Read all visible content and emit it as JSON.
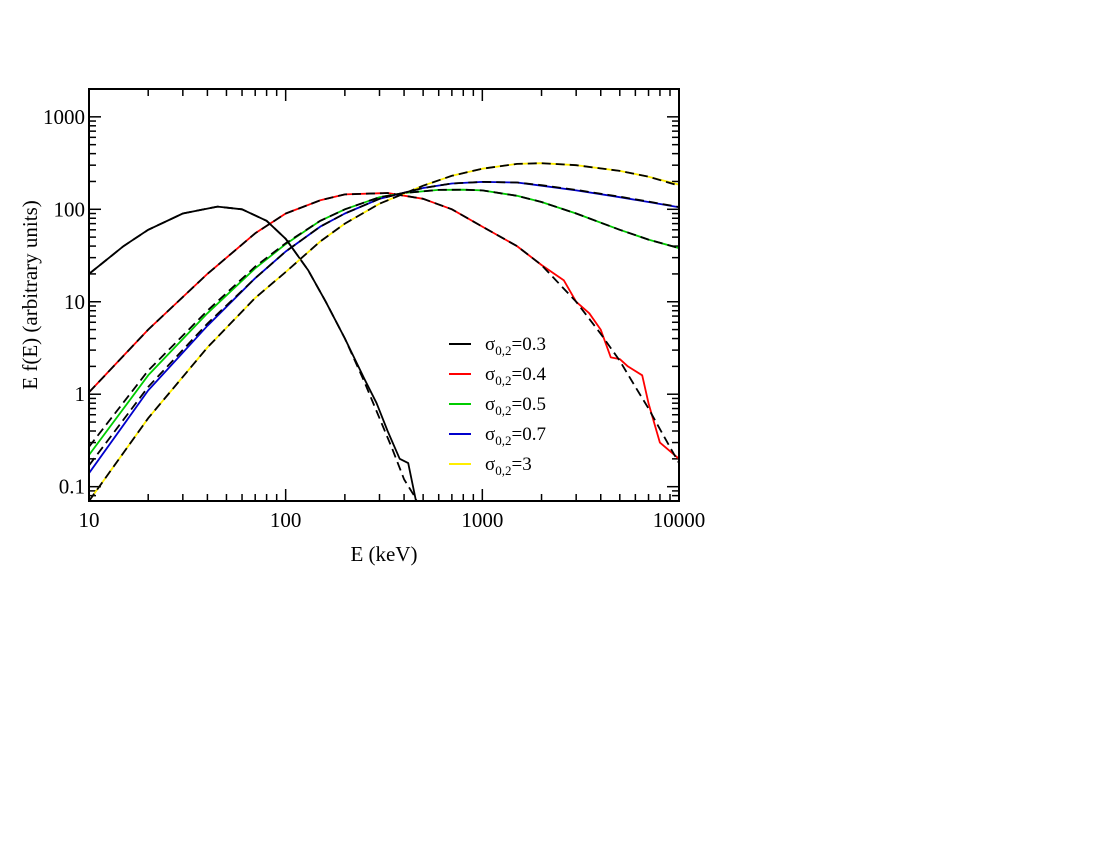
{
  "chart_data": {
    "type": "line",
    "xlabel": "E (keV)",
    "ylabel": "E f(E) (arbitrary units)",
    "xscale": "log",
    "yscale": "log",
    "xlim": [
      10,
      10000
    ],
    "ylim": [
      0.07,
      2000
    ],
    "x_ticks": [
      "10",
      "100",
      "1000",
      "10000"
    ],
    "y_ticks": [
      "0.1",
      "1",
      "10",
      "100",
      "1000"
    ],
    "grid": false,
    "legend_position": "lower-right",
    "series": [
      {
        "name": "σ0,2=0.3",
        "legend_main": "σ",
        "legend_sub": "0,2",
        "legend_val": "=0.3",
        "color": "#000000",
        "x": [
          10,
          15,
          20,
          30,
          45,
          60,
          80,
          100,
          130,
          160,
          200,
          250,
          290,
          330,
          380,
          420,
          460
        ],
        "y": [
          20,
          40,
          60,
          90,
          107,
          100,
          75,
          48,
          22,
          10,
          4.0,
          1.5,
          0.8,
          0.4,
          0.2,
          0.18,
          0.07
        ],
        "model_x": [
          10,
          15,
          20,
          30,
          45,
          60,
          80,
          100,
          130,
          160,
          200,
          250,
          300,
          350,
          400,
          450,
          500
        ],
        "model_y": [
          20,
          40,
          60,
          90,
          107,
          100,
          75,
          48,
          22,
          10,
          4.0,
          1.4,
          0.55,
          0.25,
          0.12,
          0.08,
          0.05
        ]
      },
      {
        "name": "σ0,2=0.4",
        "legend_main": "σ",
        "legend_sub": "0,2",
        "legend_val": "=0.4",
        "color": "#ff0000",
        "x": [
          10,
          20,
          40,
          70,
          100,
          150,
          200,
          330,
          500,
          700,
          1000,
          1500,
          2000,
          2600,
          3000,
          3500,
          4000,
          4500,
          5000,
          5500,
          6500,
          7000,
          8000,
          10000
        ],
        "y": [
          1.05,
          5,
          20,
          55,
          90,
          125,
          145,
          150,
          130,
          100,
          65,
          40,
          25,
          17,
          10,
          7.5,
          5,
          2.5,
          2.4,
          2.0,
          1.6,
          0.8,
          0.3,
          0.2
        ],
        "model_x": [
          10,
          20,
          40,
          70,
          100,
          150,
          200,
          330,
          500,
          700,
          1000,
          1500,
          2000,
          3000,
          4000,
          5000,
          6000,
          7000,
          8000,
          10000
        ],
        "model_y": [
          1.05,
          5,
          20,
          55,
          90,
          125,
          145,
          150,
          130,
          100,
          65,
          40,
          25,
          10,
          4.5,
          2.3,
          1.2,
          0.7,
          0.42,
          0.18
        ]
      },
      {
        "name": "σ0,2=0.5",
        "legend_main": "σ",
        "legend_sub": "0,2",
        "legend_val": "=0.5",
        "color": "#00cc00",
        "x": [
          10,
          20,
          40,
          70,
          100,
          150,
          200,
          300,
          400,
          600,
          800,
          1000,
          1500,
          2000,
          3000,
          5000,
          7000,
          10000
        ],
        "y": [
          0.22,
          1.6,
          7.5,
          23,
          42,
          75,
          100,
          135,
          150,
          162,
          163,
          160,
          140,
          120,
          90,
          60,
          47,
          38
        ],
        "model_x": [
          10,
          20,
          40,
          70,
          100,
          150,
          200,
          300,
          400,
          600,
          800,
          1000,
          1500,
          2000,
          3000,
          5000,
          7000,
          10000
        ],
        "model_y": [
          0.27,
          1.8,
          8,
          24,
          43,
          75,
          100,
          135,
          150,
          162,
          163,
          160,
          140,
          120,
          90,
          60,
          47,
          38
        ]
      },
      {
        "name": "σ0,2=0.7",
        "legend_main": "σ",
        "legend_sub": "0,2",
        "legend_val": "=0.7",
        "color": "#0000cc",
        "x": [
          10,
          20,
          40,
          70,
          100,
          150,
          200,
          300,
          500,
          700,
          1000,
          1500,
          2000,
          3000,
          5000,
          7000,
          10000
        ],
        "y": [
          0.14,
          1.1,
          5.5,
          18,
          35,
          65,
          90,
          130,
          170,
          190,
          198,
          195,
          180,
          160,
          135,
          120,
          105
        ],
        "model_x": [
          10,
          20,
          40,
          70,
          100,
          150,
          200,
          300,
          500,
          700,
          1000,
          1500,
          2000,
          3000,
          5000,
          7000,
          10000
        ],
        "model_y": [
          0.17,
          1.2,
          5.8,
          18,
          35,
          65,
          90,
          130,
          170,
          190,
          198,
          195,
          182,
          162,
          137,
          121,
          106
        ]
      },
      {
        "name": "σ0,2=3",
        "legend_main": "σ",
        "legend_sub": "0,2",
        "legend_val": "=3",
        "color": "#ffee00",
        "x": [
          10,
          20,
          40,
          70,
          100,
          150,
          200,
          300,
          500,
          700,
          1000,
          1500,
          2000,
          3000,
          5000,
          7000,
          10000
        ],
        "y": [
          0.07,
          0.55,
          3.2,
          11,
          21,
          45,
          70,
          115,
          180,
          230,
          275,
          310,
          315,
          300,
          260,
          225,
          185
        ],
        "model_x": [
          10,
          20,
          40,
          70,
          100,
          150,
          200,
          300,
          500,
          700,
          1000,
          1500,
          2000,
          3000,
          5000,
          7000,
          10000
        ],
        "model_y": [
          0.07,
          0.55,
          3.2,
          11,
          21,
          45,
          70,
          115,
          180,
          230,
          275,
          310,
          315,
          300,
          260,
          225,
          180
        ]
      }
    ]
  }
}
